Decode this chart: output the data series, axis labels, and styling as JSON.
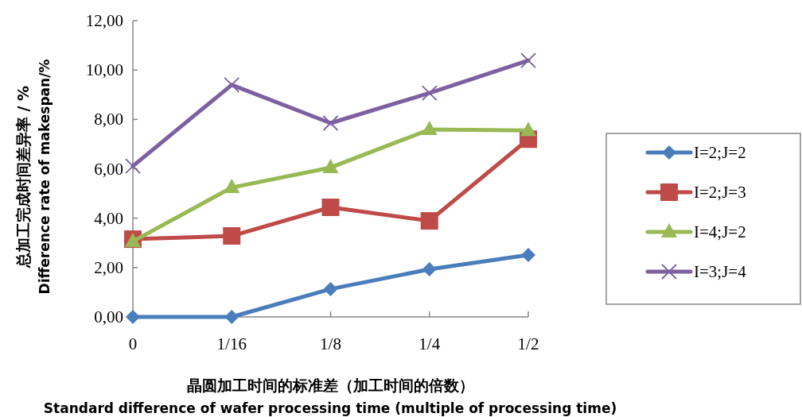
{
  "chart_data": {
    "type": "line",
    "xlabel": "晶圆加工时间的标准差（加工时间的倍数）\nStandard difference of wafer processing time (multiple of processing time)",
    "ylabel": "总加工完成时间差异率 / %\nDifference rate of makespan/%",
    "categories": [
      "0",
      "1/16",
      "1/8",
      "1/4",
      "1/2"
    ],
    "ylim": [
      0,
      12
    ],
    "yticks": [
      {
        "value": 0,
        "label": "0,00"
      },
      {
        "value": 2,
        "label": "2,00"
      },
      {
        "value": 4,
        "label": "4,00"
      },
      {
        "value": 6,
        "label": "6,00"
      },
      {
        "value": 8,
        "label": "8,00"
      },
      {
        "value": 10,
        "label": "10,00"
      },
      {
        "value": 12,
        "label": "12,00"
      }
    ],
    "grid": false,
    "legend": "right",
    "series": [
      {
        "name": "I=2;J=2",
        "color": "#4a7ebb",
        "marker": "diamond",
        "values": [
          0,
          0,
          1.13,
          1.93,
          2.51
        ]
      },
      {
        "name": "I=2;J=3",
        "color": "#be4b48",
        "marker": "square",
        "values": [
          3.15,
          3.28,
          4.44,
          3.89,
          7.2
        ]
      },
      {
        "name": "I=4;J=2",
        "color": "#98b954",
        "marker": "triangle",
        "values": [
          3.06,
          5.24,
          6.05,
          7.59,
          7.55
        ]
      },
      {
        "name": "I=3;J=4",
        "color": "#7d60a0",
        "marker": "cross",
        "values": [
          6.11,
          9.4,
          7.85,
          9.07,
          10.39
        ]
      }
    ]
  }
}
